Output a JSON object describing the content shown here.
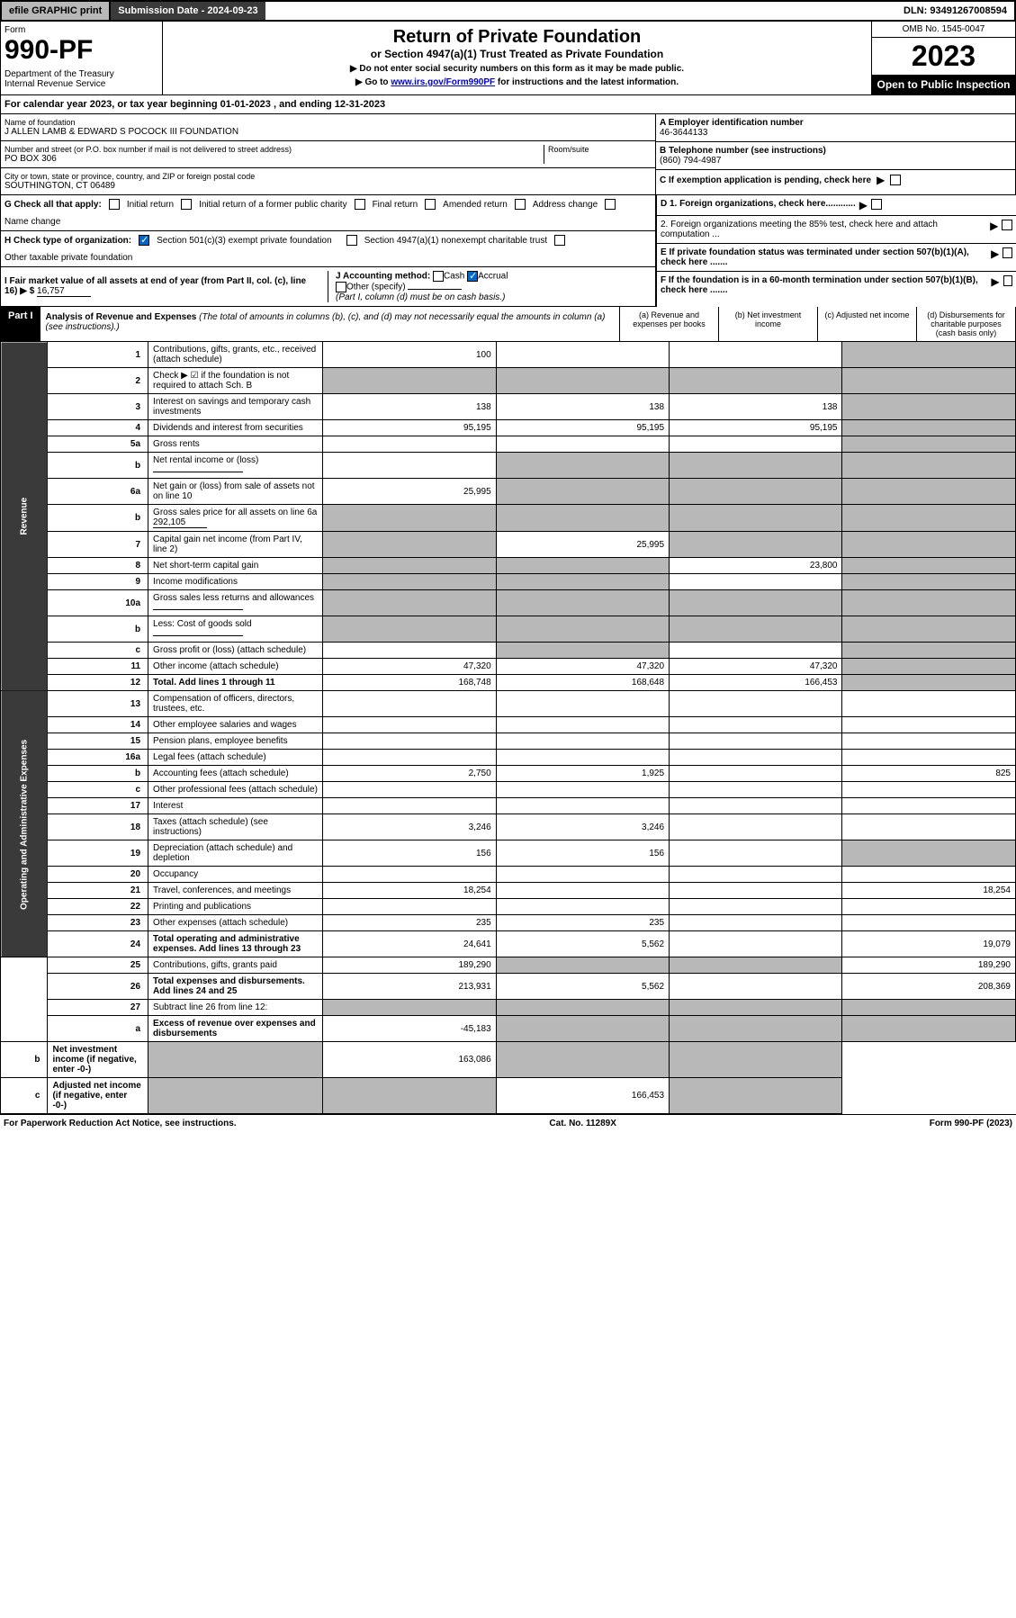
{
  "topbar": {
    "efile": "efile GRAPHIC print",
    "submission": "Submission Date - 2024-09-23",
    "dln": "DLN: 93491267008594"
  },
  "header": {
    "form_label": "Form",
    "form_num": "990-PF",
    "dept": "Department of the Treasury\nInternal Revenue Service",
    "title": "Return of Private Foundation",
    "subtitle": "or Section 4947(a)(1) Trust Treated as Private Foundation",
    "instr1": "▶ Do not enter social security numbers on this form as it may be made public.",
    "instr2_pre": "▶ Go to ",
    "instr2_link": "www.irs.gov/Form990PF",
    "instr2_post": " for instructions and the latest information.",
    "omb": "OMB No. 1545-0047",
    "year": "2023",
    "open": "Open to Public Inspection"
  },
  "calyear": "For calendar year 2023, or tax year beginning 01-01-2023          , and ending 12-31-2023",
  "info": {
    "name_lbl": "Name of foundation",
    "name": "J ALLEN LAMB & EDWARD S POCOCK III FOUNDATION",
    "addr_lbl": "Number and street (or P.O. box number if mail is not delivered to street address)",
    "addr": "PO BOX 306",
    "room_lbl": "Room/suite",
    "city_lbl": "City or town, state or province, country, and ZIP or foreign postal code",
    "city": "SOUTHINGTON, CT  06489",
    "a_lbl": "A Employer identification number",
    "a_val": "46-3644133",
    "b_lbl": "B Telephone number (see instructions)",
    "b_val": "(860) 794-4987",
    "c_lbl": "C If exemption application is pending, check here",
    "d1": "D 1. Foreign organizations, check here............",
    "d2": "2. Foreign organizations meeting the 85% test, check here and attach computation ...",
    "e": "E  If private foundation status was terminated under section 507(b)(1)(A), check here .......",
    "f": "F  If the foundation is in a 60-month termination under section 507(b)(1)(B), check here .......",
    "g_lbl": "G Check all that apply:",
    "g_opts": [
      "Initial return",
      "Initial return of a former public charity",
      "Final return",
      "Amended return",
      "Address change",
      "Name change"
    ],
    "h_lbl": "H Check type of organization:",
    "h_opts": [
      "Section 501(c)(3) exempt private foundation",
      "Section 4947(a)(1) nonexempt charitable trust",
      "Other taxable private foundation"
    ],
    "i_lbl": "I Fair market value of all assets at end of year (from Part II, col. (c), line 16) ▶ $",
    "i_val": "16,757",
    "j_lbl": "J Accounting method:",
    "j_opts": [
      "Cash",
      "Accrual",
      "Other (specify)"
    ],
    "j_note": "(Part I, column (d) must be on cash basis.)"
  },
  "part1": {
    "header": "Part I",
    "title": "Analysis of Revenue and Expenses",
    "title_note": "(The total of amounts in columns (b), (c), and (d) may not necessarily equal the amounts in column (a) (see instructions).)",
    "col_a": "(a) Revenue and expenses per books",
    "col_b": "(b) Net investment income",
    "col_c": "(c) Adjusted net income",
    "col_d": "(d) Disbursements for charitable purposes (cash basis only)",
    "side_rev": "Revenue",
    "side_exp": "Operating and Administrative Expenses"
  },
  "rows": [
    {
      "n": "1",
      "desc": "Contributions, gifts, grants, etc., received (attach schedule)",
      "a": "100",
      "b": "",
      "c": "",
      "d": "",
      "d_shade": true
    },
    {
      "n": "2",
      "desc": "Check ▶ ☑ if the foundation is not required to attach Sch. B",
      "a": "",
      "b": "",
      "c": "",
      "d": "",
      "all_shade": true,
      "no_vals": true
    },
    {
      "n": "3",
      "desc": "Interest on savings and temporary cash investments",
      "a": "138",
      "b": "138",
      "c": "138",
      "d": "",
      "d_shade": true
    },
    {
      "n": "4",
      "desc": "Dividends and interest from securities",
      "a": "95,195",
      "b": "95,195",
      "c": "95,195",
      "d": "",
      "d_shade": true
    },
    {
      "n": "5a",
      "desc": "Gross rents",
      "a": "",
      "b": "",
      "c": "",
      "d": "",
      "d_shade": true
    },
    {
      "n": "b",
      "desc": "Net rental income or (loss)",
      "a": "",
      "b": "",
      "c": "",
      "d": "",
      "bcd_shade": true,
      "inline_box": true
    },
    {
      "n": "6a",
      "desc": "Net gain or (loss) from sale of assets not on line 10",
      "a": "25,995",
      "b": "",
      "c": "",
      "d": "",
      "bcd_shade": true
    },
    {
      "n": "b",
      "desc": "Gross sales price for all assets on line 6a",
      "a": "",
      "b": "",
      "c": "",
      "d": "",
      "all_shade": true,
      "inline_val": "292,105"
    },
    {
      "n": "7",
      "desc": "Capital gain net income (from Part IV, line 2)",
      "a": "",
      "b": "25,995",
      "c": "",
      "d": "",
      "a_shade": true,
      "cd_shade": true
    },
    {
      "n": "8",
      "desc": "Net short-term capital gain",
      "a": "",
      "b": "",
      "c": "23,800",
      "d": "",
      "ab_shade": true,
      "d_shade": true
    },
    {
      "n": "9",
      "desc": "Income modifications",
      "a": "",
      "b": "",
      "c": "",
      "d": "",
      "ab_shade": true,
      "d_shade": true
    },
    {
      "n": "10a",
      "desc": "Gross sales less returns and allowances",
      "a": "",
      "b": "",
      "c": "",
      "d": "",
      "all_shade": true,
      "inline_box": true
    },
    {
      "n": "b",
      "desc": "Less: Cost of goods sold",
      "a": "",
      "b": "",
      "c": "",
      "d": "",
      "all_shade": true,
      "inline_box": true
    },
    {
      "n": "c",
      "desc": "Gross profit or (loss) (attach schedule)",
      "a": "",
      "b": "",
      "c": "",
      "d": "",
      "b_shade": true,
      "d_shade": true
    },
    {
      "n": "11",
      "desc": "Other income (attach schedule)",
      "a": "47,320",
      "b": "47,320",
      "c": "47,320",
      "d": "",
      "d_shade": true
    },
    {
      "n": "12",
      "desc": "Total. Add lines 1 through 11",
      "a": "168,748",
      "b": "168,648",
      "c": "166,453",
      "d": "",
      "d_shade": true,
      "bold": true
    },
    {
      "n": "13",
      "desc": "Compensation of officers, directors, trustees, etc.",
      "a": "",
      "b": "",
      "c": "",
      "d": ""
    },
    {
      "n": "14",
      "desc": "Other employee salaries and wages",
      "a": "",
      "b": "",
      "c": "",
      "d": ""
    },
    {
      "n": "15",
      "desc": "Pension plans, employee benefits",
      "a": "",
      "b": "",
      "c": "",
      "d": ""
    },
    {
      "n": "16a",
      "desc": "Legal fees (attach schedule)",
      "a": "",
      "b": "",
      "c": "",
      "d": ""
    },
    {
      "n": "b",
      "desc": "Accounting fees (attach schedule)",
      "a": "2,750",
      "b": "1,925",
      "c": "",
      "d": "825"
    },
    {
      "n": "c",
      "desc": "Other professional fees (attach schedule)",
      "a": "",
      "b": "",
      "c": "",
      "d": ""
    },
    {
      "n": "17",
      "desc": "Interest",
      "a": "",
      "b": "",
      "c": "",
      "d": ""
    },
    {
      "n": "18",
      "desc": "Taxes (attach schedule) (see instructions)",
      "a": "3,246",
      "b": "3,246",
      "c": "",
      "d": ""
    },
    {
      "n": "19",
      "desc": "Depreciation (attach schedule) and depletion",
      "a": "156",
      "b": "156",
      "c": "",
      "d": "",
      "d_shade": true
    },
    {
      "n": "20",
      "desc": "Occupancy",
      "a": "",
      "b": "",
      "c": "",
      "d": ""
    },
    {
      "n": "21",
      "desc": "Travel, conferences, and meetings",
      "a": "18,254",
      "b": "",
      "c": "",
      "d": "18,254"
    },
    {
      "n": "22",
      "desc": "Printing and publications",
      "a": "",
      "b": "",
      "c": "",
      "d": ""
    },
    {
      "n": "23",
      "desc": "Other expenses (attach schedule)",
      "a": "235",
      "b": "235",
      "c": "",
      "d": ""
    },
    {
      "n": "24",
      "desc": "Total operating and administrative expenses. Add lines 13 through 23",
      "a": "24,641",
      "b": "5,562",
      "c": "",
      "d": "19,079",
      "bold": true
    },
    {
      "n": "25",
      "desc": "Contributions, gifts, grants paid",
      "a": "189,290",
      "b": "",
      "c": "",
      "d": "189,290",
      "bc_shade": true
    },
    {
      "n": "26",
      "desc": "Total expenses and disbursements. Add lines 24 and 25",
      "a": "213,931",
      "b": "5,562",
      "c": "",
      "d": "208,369",
      "bold": true
    },
    {
      "n": "27",
      "desc": "Subtract line 26 from line 12:",
      "a": "",
      "b": "",
      "c": "",
      "d": "",
      "all_shade": true,
      "no_vals": true
    },
    {
      "n": "a",
      "desc": "Excess of revenue over expenses and disbursements",
      "a": "-45,183",
      "b": "",
      "c": "",
      "d": "",
      "bcd_shade": true,
      "bold": true
    },
    {
      "n": "b",
      "desc": "Net investment income (if negative, enter -0-)",
      "a": "",
      "b": "163,086",
      "c": "",
      "d": "",
      "a_shade": true,
      "cd_shade": true,
      "bold": true
    },
    {
      "n": "c",
      "desc": "Adjusted net income (if negative, enter -0-)",
      "a": "",
      "b": "",
      "c": "166,453",
      "d": "",
      "ab_shade": true,
      "d_shade": true,
      "bold": true
    }
  ],
  "footer": {
    "left": "For Paperwork Reduction Act Notice, see instructions.",
    "mid": "Cat. No. 11289X",
    "right": "Form 990-PF (2023)"
  }
}
